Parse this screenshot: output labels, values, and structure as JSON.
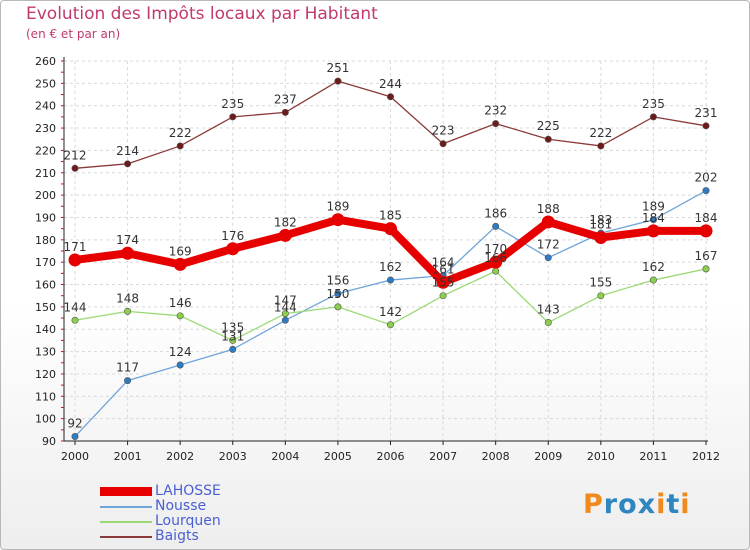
{
  "header": {
    "title": "Evolution des Impôts locaux par Habitant",
    "subtitle": "(en € et par an)"
  },
  "logo": {
    "text": "Proxiti",
    "letters": [
      "P",
      "r",
      "o",
      "x",
      "i",
      "t",
      "i"
    ],
    "colors": [
      "#f08a1c",
      "#2e86c1",
      "#2e86c1",
      "#2e86c1",
      "#f08a1c",
      "#2e86c1",
      "#f08a1c"
    ]
  },
  "chart_data": {
    "type": "line",
    "title": "Evolution des Impôts locaux par Habitant",
    "subtitle": "(en € et par an)",
    "xlabel": "",
    "ylabel": "",
    "ylim": [
      90,
      260
    ],
    "yticks": [
      90,
      100,
      110,
      120,
      130,
      140,
      150,
      160,
      170,
      180,
      190,
      200,
      210,
      220,
      230,
      240,
      250,
      260
    ],
    "grid": true,
    "legend_position": "bottom-left",
    "categories": [
      "2000",
      "2001",
      "2002",
      "2003",
      "2004",
      "2005",
      "2006",
      "2007",
      "2008",
      "2009",
      "2010",
      "2011",
      "2012"
    ],
    "series": [
      {
        "name": "LAHOSSE",
        "color": "#e60000",
        "marker": "#e60000",
        "width": 8,
        "values": [
          171,
          174,
          169,
          176,
          182,
          189,
          185,
          161,
          170,
          188,
          181,
          184,
          184
        ],
        "labels": [
          "171",
          "174",
          "169",
          "176",
          "182",
          "189",
          "185",
          "161",
          "170",
          "188",
          "181",
          "184",
          "184"
        ]
      },
      {
        "name": "Nousse",
        "color": "#6fa5d8",
        "marker": "#2e7bc4",
        "width": 1.3,
        "values": [
          92,
          117,
          124,
          131,
          144,
          156,
          162,
          164,
          186,
          172,
          183,
          189,
          202
        ],
        "labels": [
          "92",
          "117",
          "124",
          "131",
          "144",
          "156",
          "162",
          "164",
          "186",
          "172",
          "183",
          "189",
          "202"
        ]
      },
      {
        "name": "Lourquen",
        "color": "#9ad974",
        "marker": "#8bcf4c",
        "width": 1.3,
        "values": [
          144,
          148,
          146,
          135,
          147,
          150,
          142,
          155,
          166,
          143,
          155,
          162,
          167
        ],
        "labels": [
          "144",
          "148",
          "146",
          "135",
          "147",
          "150",
          "142",
          "155",
          "166",
          "143",
          "155",
          "162",
          "167"
        ]
      },
      {
        "name": "Baigts",
        "color": "#8a3a3a",
        "marker": "#6d1a1a",
        "width": 1.3,
        "values": [
          212,
          214,
          222,
          235,
          237,
          251,
          244,
          223,
          232,
          225,
          222,
          235,
          231
        ],
        "labels": [
          "212",
          "214",
          "222",
          "235",
          "237",
          "251",
          "244",
          "223",
          "232",
          "225",
          "222",
          "235",
          "231"
        ]
      }
    ]
  }
}
